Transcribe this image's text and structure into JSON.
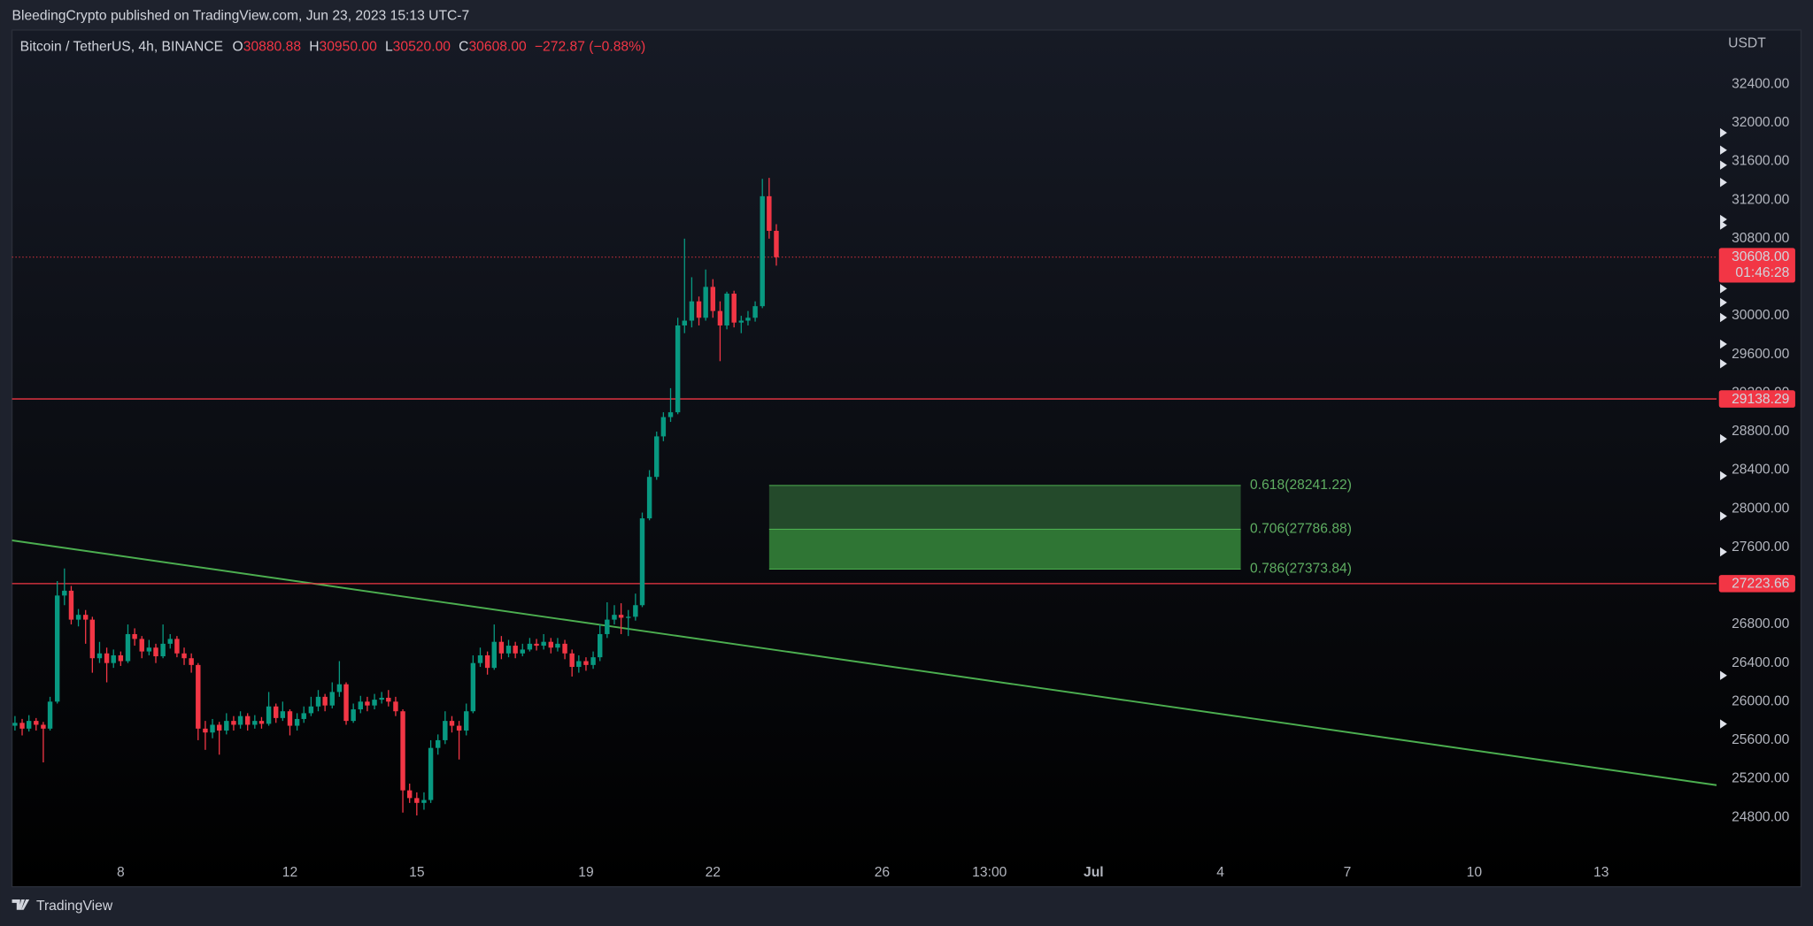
{
  "header": {
    "attribution": "BleedingCrypto published on TradingView.com, Jun 23, 2023 15:13 UTC-7"
  },
  "chart_data": {
    "type": "candlestick",
    "title": "Bitcoin / TetherUS, 4h, BINANCE",
    "ohlc_legend": [
      {
        "key": "O",
        "text": "30880.88"
      },
      {
        "key": "H",
        "text": "30950.00"
      },
      {
        "key": "L",
        "text": "30520.00"
      },
      {
        "key": "C",
        "text": "30608.00"
      }
    ],
    "change": "−272.87 (−0.88%)",
    "y_axis_label": "USDT",
    "x": [
      5.5,
      5.67,
      5.83,
      6,
      6.17,
      6.33,
      6.5,
      6.67,
      6.83,
      7,
      7.17,
      7.33,
      7.5,
      7.67,
      7.83,
      8,
      8.17,
      8.33,
      8.5,
      8.67,
      8.83,
      9,
      9.17,
      9.33,
      9.5,
      9.67,
      9.83,
      10,
      10.17,
      10.33,
      10.5,
      10.67,
      10.83,
      11,
      11.17,
      11.33,
      11.5,
      11.67,
      11.83,
      12,
      12.17,
      12.33,
      12.5,
      12.67,
      12.83,
      13,
      13.17,
      13.33,
      13.5,
      13.67,
      13.83,
      14,
      14.17,
      14.33,
      14.5,
      14.67,
      14.83,
      15,
      15.17,
      15.33,
      15.5,
      15.67,
      15.83,
      16,
      16.17,
      16.33,
      16.5,
      16.67,
      16.83,
      17,
      17.17,
      17.33,
      17.5,
      17.67,
      17.83,
      18,
      18.17,
      18.33,
      18.5,
      18.67,
      18.83,
      19,
      19.17,
      19.33,
      19.5,
      19.67,
      19.83,
      20,
      20.17,
      20.33,
      20.5,
      20.67,
      20.83,
      21,
      21.17,
      21.33,
      21.5,
      21.67,
      21.83,
      22,
      22.17,
      22.33,
      22.5,
      22.67,
      22.83,
      23,
      23.17,
      23.33,
      23.5
    ],
    "open": [
      25750,
      25780,
      25720,
      25800,
      25760,
      25720,
      26000,
      27100,
      27150,
      26850,
      26900,
      26850,
      26450,
      26500,
      26400,
      26480,
      26420,
      26700,
      26650,
      26520,
      26560,
      26470,
      26600,
      26650,
      26500,
      26450,
      26380,
      25720,
      25680,
      25760,
      25700,
      25800,
      25760,
      25850,
      25760,
      25800,
      25770,
      25950,
      25830,
      25900,
      25750,
      25820,
      25880,
      25950,
      26050,
      25960,
      26100,
      26180,
      25800,
      25920,
      26000,
      25960,
      26020,
      26040,
      26000,
      25900,
      25080,
      25000,
      24950,
      24980,
      25520,
      25600,
      25800,
      25750,
      25700,
      25900,
      26400,
      26480,
      26350,
      26620,
      26500,
      26580,
      26500,
      26540,
      26600,
      26580,
      26620,
      26560,
      26600,
      26500,
      26360,
      26420,
      26380,
      26460,
      26700,
      26850,
      26900,
      26870,
      26880,
      27000,
      27900,
      28330,
      28750,
      28950,
      29000,
      29900,
      29950,
      30150,
      29980,
      30300,
      30050,
      29900,
      30230,
      29930,
      29950,
      29980,
      30100,
      31240,
      30880.88
    ],
    "high": [
      25850,
      25820,
      25860,
      25830,
      25790,
      26050,
      27250,
      27380,
      27200,
      26960,
      26950,
      26880,
      26620,
      26560,
      26540,
      26520,
      26800,
      26760,
      26680,
      26640,
      26600,
      26800,
      26700,
      26680,
      26560,
      26500,
      26400,
      25800,
      25820,
      25790,
      25880,
      25850,
      25900,
      25880,
      25860,
      25840,
      26100,
      25980,
      26000,
      25920,
      25880,
      25950,
      26050,
      26120,
      26080,
      26200,
      26420,
      26200,
      25980,
      26060,
      26050,
      26080,
      26100,
      26120,
      26050,
      25920,
      25150,
      25060,
      25060,
      25600,
      25660,
      25900,
      25850,
      25800,
      25980,
      26480,
      26560,
      26520,
      26800,
      26680,
      26640,
      26620,
      26600,
      26660,
      26650,
      26700,
      26660,
      26660,
      26640,
      26540,
      26480,
      26460,
      26520,
      26800,
      27030,
      27000,
      27020,
      26950,
      27120,
      27960,
      28400,
      28800,
      29000,
      29250,
      29980,
      30800,
      30400,
      30200,
      30480,
      30380,
      30150,
      30250,
      30260,
      30000,
      30050,
      30150,
      31420,
      31430,
      30950
    ],
    "low": [
      25700,
      25650,
      25690,
      25700,
      25370,
      25700,
      25980,
      27000,
      26800,
      26780,
      26600,
      26300,
      26400,
      26200,
      26350,
      26370,
      26400,
      26580,
      26450,
      26480,
      26400,
      26450,
      26550,
      26460,
      26380,
      26300,
      25600,
      25500,
      25620,
      25450,
      25660,
      25700,
      25720,
      25700,
      25720,
      25720,
      25750,
      25780,
      25800,
      25650,
      25700,
      25780,
      25850,
      25900,
      25900,
      25930,
      26050,
      25760,
      25780,
      25880,
      25900,
      25920,
      25980,
      25950,
      25850,
      24850,
      24950,
      24820,
      24880,
      24950,
      25450,
      25560,
      25680,
      25400,
      25650,
      25880,
      26360,
      26280,
      26330,
      26440,
      26460,
      26450,
      26470,
      26520,
      26530,
      26540,
      26500,
      26520,
      26440,
      26260,
      26300,
      26320,
      26340,
      26420,
      26660,
      26800,
      26700,
      26680,
      26840,
      26980,
      27880,
      28300,
      28700,
      28900,
      28980,
      29820,
      29880,
      29900,
      29950,
      29980,
      29530,
      29860,
      29880,
      29820,
      29900,
      29940,
      30080,
      30800,
      30520
    ],
    "close": [
      25780,
      25720,
      25800,
      25760,
      25720,
      26000,
      27100,
      27150,
      26850,
      26900,
      26850,
      26450,
      26500,
      26400,
      26480,
      26420,
      26700,
      26650,
      26520,
      26560,
      26470,
      26600,
      26650,
      26500,
      26450,
      26380,
      25720,
      25680,
      25760,
      25700,
      25800,
      25760,
      25850,
      25760,
      25800,
      25770,
      25950,
      25830,
      25900,
      25750,
      25820,
      25880,
      25950,
      26050,
      25960,
      26100,
      26180,
      25800,
      25920,
      26000,
      25960,
      26020,
      26040,
      26000,
      25900,
      25080,
      25000,
      24950,
      24980,
      25520,
      25600,
      25800,
      25750,
      25700,
      25900,
      26400,
      26480,
      26350,
      26620,
      26500,
      26580,
      26500,
      26540,
      26600,
      26580,
      26620,
      26560,
      26600,
      26500,
      26360,
      26420,
      26380,
      26460,
      26700,
      26850,
      26900,
      26870,
      26880,
      27000,
      27900,
      28330,
      28750,
      28950,
      29000,
      29900,
      29950,
      30150,
      29980,
      30300,
      30050,
      29900,
      30230,
      29930,
      29950,
      29980,
      30100,
      31240,
      30880.88,
      30608
    ],
    "up_color": "#089981",
    "down_color": "#f23645",
    "xlim": [
      5.43,
      45.73
    ],
    "ylim": [
      24392,
      32963
    ],
    "xticks": [
      8,
      12,
      15,
      19,
      22,
      26,
      {
        "value": 28.54,
        "label": "13:00"
      },
      {
        "value": 31,
        "label": "Jul"
      },
      {
        "value": 34,
        "label": "4"
      },
      {
        "value": 37,
        "label": "7"
      },
      {
        "value": 40,
        "label": "10"
      },
      {
        "value": 43,
        "label": "13"
      }
    ],
    "yticks": [
      {
        "value": 24800,
        "label": "24800.00"
      },
      {
        "value": 25200,
        "label": "25200.00"
      },
      {
        "value": 25600,
        "label": "25600.00"
      },
      {
        "value": 26000,
        "label": "26000.00"
      },
      {
        "value": 26400,
        "label": "26400.00"
      },
      {
        "value": 26800,
        "label": "26800.00"
      },
      {
        "value": 27200,
        "label": "27200.00"
      },
      {
        "value": 27600,
        "label": "27600.00"
      },
      {
        "value": 28000,
        "label": "28000.00"
      },
      {
        "value": 28400,
        "label": "28400.00"
      },
      {
        "value": 28800,
        "label": "28800.00"
      },
      {
        "value": 29200,
        "label": "29200.00"
      },
      {
        "value": 29600,
        "label": "29600.00"
      },
      {
        "value": 30000,
        "label": "30000.00"
      },
      {
        "value": 30400,
        "label": "30400.00"
      },
      {
        "value": 30800,
        "label": "30800.00"
      },
      {
        "value": 31200,
        "label": "31200.00"
      },
      {
        "value": 31600,
        "label": "31600.00"
      },
      {
        "value": 32000,
        "label": "32000.00"
      },
      {
        "value": 32400,
        "label": "32400.00"
      }
    ],
    "grid": false,
    "price_lines": [
      {
        "value": 29138.29,
        "label": "29138.29",
        "color": "#f23645"
      },
      {
        "value": 27223.66,
        "label": "27223.66",
        "color": "#f23645"
      }
    ],
    "last_price": {
      "value": 30608,
      "label": "30608.00",
      "countdown": "01:46:28",
      "color": "#f23645"
    },
    "fib_zone": {
      "x": [
        23.33,
        34.48
      ],
      "levels": [
        {
          "value": 28241.22,
          "label": "0.618(28241.22)"
        },
        {
          "value": 27786.88,
          "label": "0.706(27786.88)"
        },
        {
          "value": 27373.84,
          "label": "0.786(27373.84)"
        }
      ]
    },
    "trendline": {
      "x": [
        5.43,
        45.73
      ],
      "y": [
        27672,
        25134
      ],
      "color": "#4caf50"
    }
  },
  "footer": {
    "brand": "TradingView"
  }
}
